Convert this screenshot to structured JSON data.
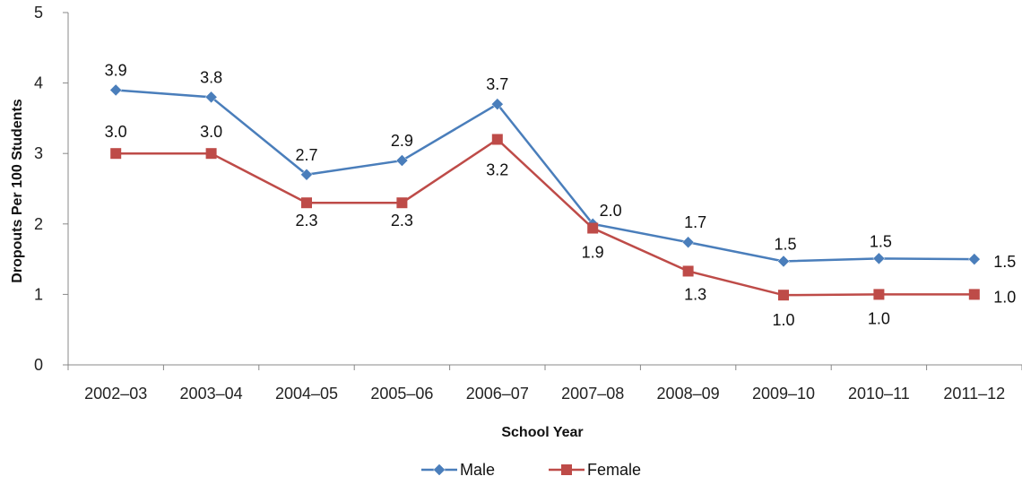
{
  "chart_data": {
    "type": "line",
    "title": "",
    "xlabel": "School Year",
    "ylabel": "Dropouts Per 100 Students",
    "ylim": [
      0,
      5
    ],
    "yticks": [
      "0",
      "1",
      "2",
      "3",
      "4",
      "5"
    ],
    "categories": [
      "2002–03",
      "2003–04",
      "2004–05",
      "2005–06",
      "2006–07",
      "2007–08",
      "2008–09",
      "2009–10",
      "2010–11",
      "2011–12"
    ],
    "series": [
      {
        "name": "Male",
        "color": "#4a7ebb",
        "marker": "diamond",
        "values": [
          3.9,
          3.8,
          2.7,
          2.9,
          3.7,
          2.0,
          1.74,
          1.47,
          1.51,
          1.5
        ],
        "labels": [
          "3.9",
          "3.8",
          "2.7",
          "2.9",
          "3.7",
          "2.0",
          "1.7",
          "1.5",
          "1.5",
          "1.5"
        ]
      },
      {
        "name": "Female",
        "color": "#be4b48",
        "marker": "square",
        "values": [
          3.0,
          3.0,
          2.3,
          2.3,
          3.2,
          1.94,
          1.33,
          0.99,
          1.0,
          1.0
        ],
        "labels": [
          "3.0",
          "3.0",
          "2.3",
          "2.3",
          "3.2",
          "1.9",
          "1.3",
          "1.0",
          "1.0",
          "1.0"
        ]
      }
    ],
    "grid": false,
    "legend": "bottom"
  }
}
